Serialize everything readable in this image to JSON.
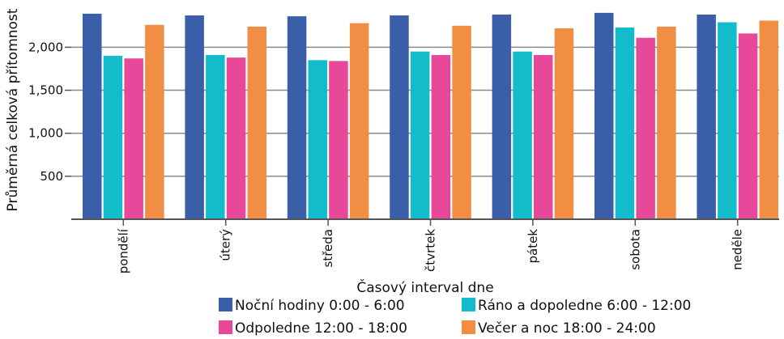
{
  "chart_data": {
    "type": "bar",
    "title": "",
    "xlabel": "Časový interval dne",
    "ylabel": "Průměrná celková přítomnost",
    "categories": [
      "pondělí",
      "úterý",
      "středa",
      "čtvrtek",
      "pátek",
      "sobota",
      "neděle"
    ],
    "series": [
      {
        "name": "Noční hodiny 0:00 - 6:00",
        "color": "#3b5ea8",
        "values": [
          2390,
          2370,
          2360,
          2370,
          2380,
          2400,
          2380
        ]
      },
      {
        "name": "Ráno a dopoledne 6:00 - 12:00",
        "color": "#12bccb",
        "values": [
          1900,
          1910,
          1850,
          1950,
          1950,
          2230,
          2290
        ]
      },
      {
        "name": "Odpoledne 12:00 - 18:00",
        "color": "#e8489a",
        "values": [
          1870,
          1880,
          1840,
          1910,
          1910,
          2110,
          2160
        ]
      },
      {
        "name": "Večer a noc 18:00 - 24:00",
        "color": "#f28e44",
        "values": [
          2260,
          2240,
          2280,
          2250,
          2220,
          2240,
          2310
        ]
      }
    ],
    "yticks": [
      500,
      1000,
      1500,
      2000
    ],
    "ytick_labels": [
      "500",
      "1,000",
      "1,500",
      "2,000"
    ],
    "ylim": [
      0,
      2400
    ],
    "grid": true,
    "legend_position": "bottom"
  }
}
